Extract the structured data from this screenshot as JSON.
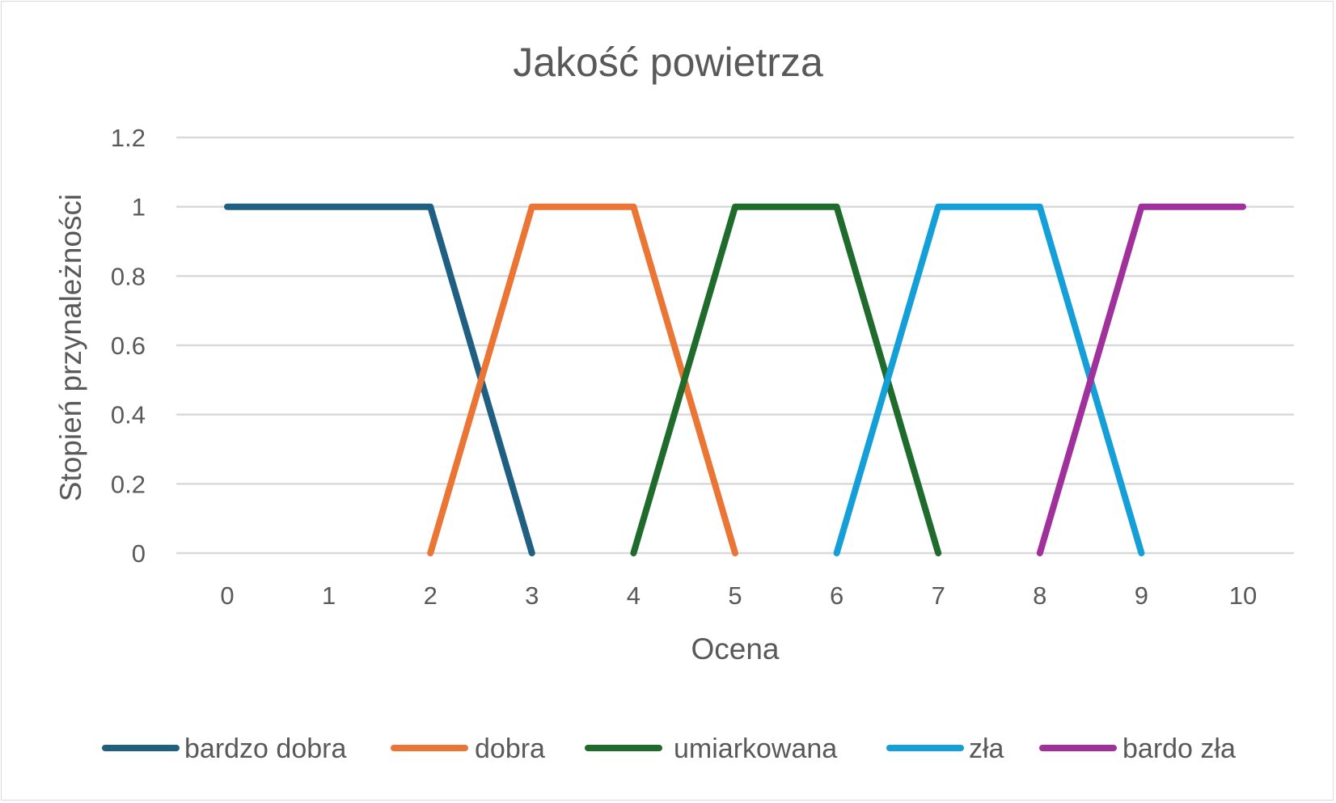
{
  "chart_data": {
    "type": "line",
    "title": "Jakość powietrza",
    "xlabel": "Ocena",
    "ylabel": "Stopień przynależności",
    "x_ticks": [
      "0",
      "1",
      "2",
      "3",
      "4",
      "5",
      "6",
      "7",
      "8",
      "9",
      "10"
    ],
    "y_ticks": [
      "0",
      "0.2",
      "0.4",
      "0.6",
      "0.8",
      "1",
      "1.2"
    ],
    "xlim": [
      0,
      10
    ],
    "ylim": [
      0,
      1.2
    ],
    "grid": true,
    "legend_position": "bottom",
    "series": [
      {
        "name": "bardzo dobra",
        "color": "#1f5f82",
        "x": [
          0,
          2,
          3
        ],
        "y": [
          1,
          1,
          0
        ]
      },
      {
        "name": "dobra",
        "color": "#ea7535",
        "x": [
          2,
          3,
          4,
          5
        ],
        "y": [
          0,
          1,
          1,
          0
        ]
      },
      {
        "name": "umiarkowana",
        "color": "#1e6b2c",
        "x": [
          4,
          5,
          6,
          7
        ],
        "y": [
          0,
          1,
          1,
          0
        ]
      },
      {
        "name": "zła",
        "color": "#149fd8",
        "x": [
          6,
          7,
          8,
          9
        ],
        "y": [
          0,
          1,
          1,
          0
        ]
      },
      {
        "name": "bardo zła",
        "color": "#a0309c",
        "x": [
          8,
          9,
          10
        ],
        "y": [
          0,
          1,
          1
        ]
      }
    ]
  }
}
